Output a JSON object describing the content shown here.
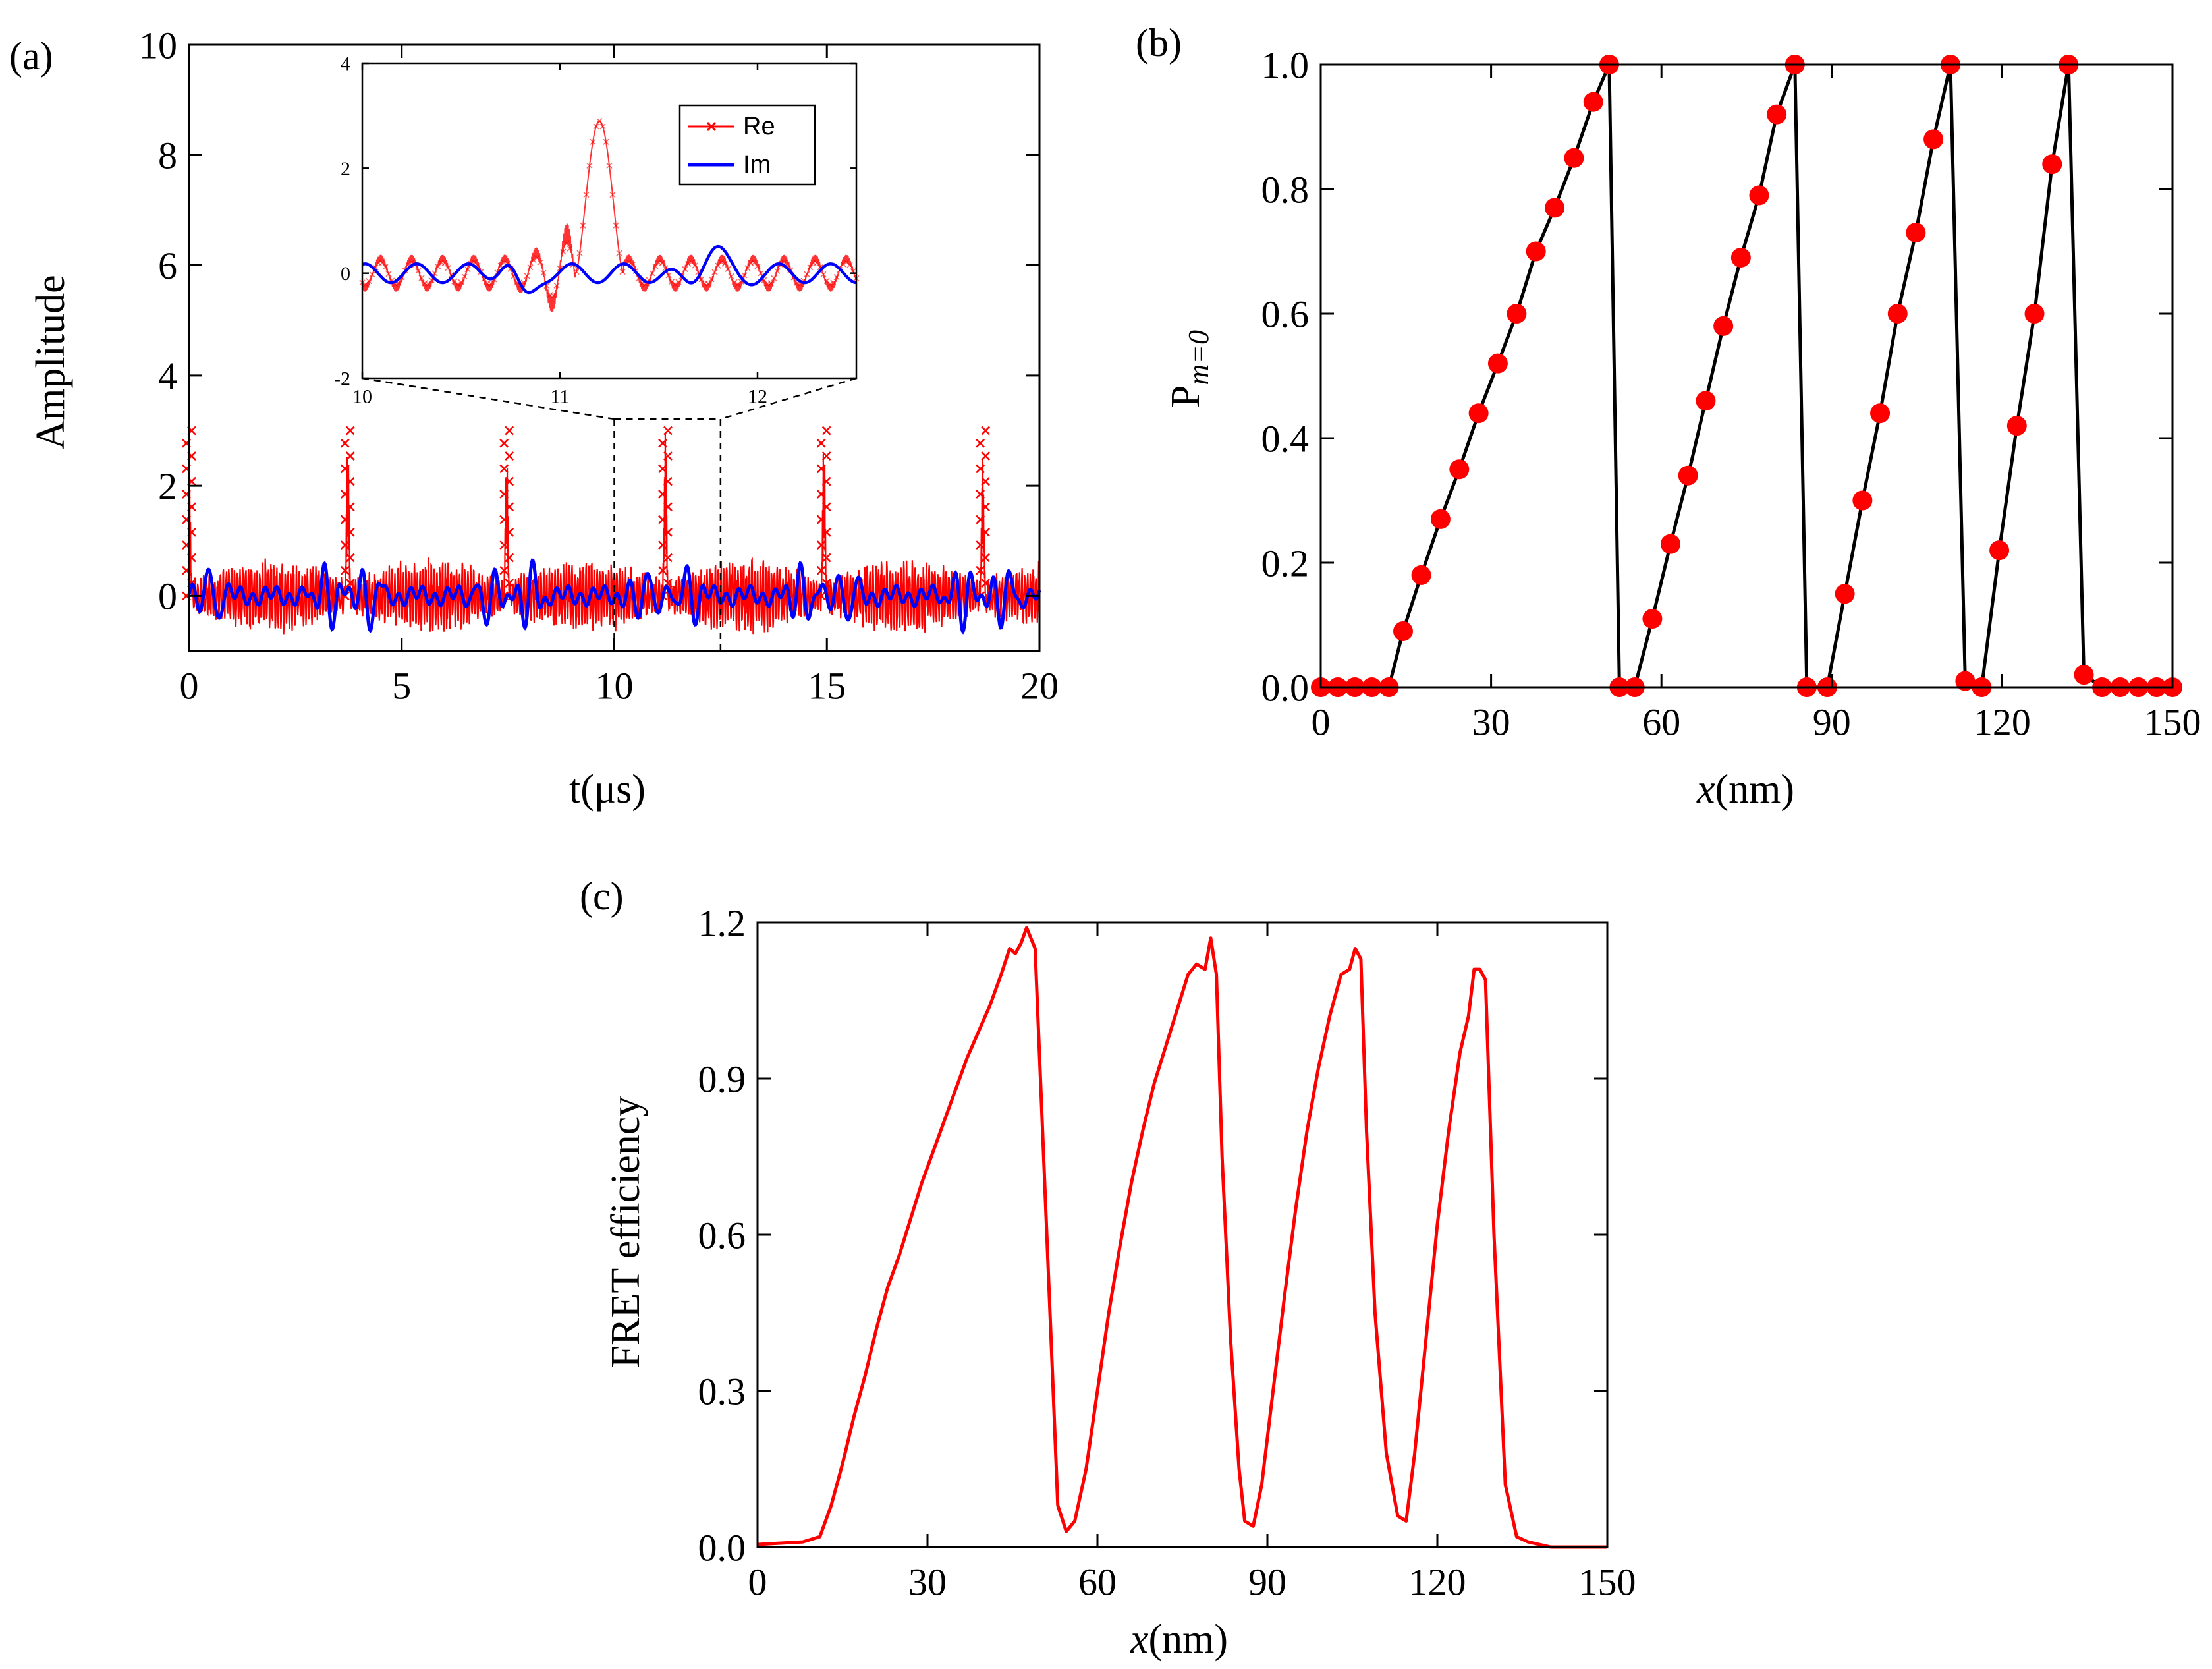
{
  "chart_data": [
    {
      "panel": "(a)",
      "type": "line",
      "xlabel": "t(μs)",
      "ylabel": "Amplitude",
      "xlim": [
        0,
        20
      ],
      "ylim": [
        -1.0,
        10
      ],
      "xticks": [
        0,
        5,
        10,
        15,
        20
      ],
      "yticks": [
        0,
        2,
        4,
        6,
        8,
        10
      ],
      "series": [
        {
          "name": "Re",
          "color": "#ff0000",
          "marker": "x",
          "peaks_at": [
            0.0,
            3.73,
            7.47,
            11.2,
            14.93,
            18.67
          ],
          "peak_value": 3.0,
          "baseline_range": [
            -0.8,
            0.8
          ]
        },
        {
          "name": "Im",
          "color": "#0000ff",
          "range": [
            -0.8,
            0.8
          ]
        }
      ],
      "zoom_region": {
        "x": [
          10.0,
          12.5
        ]
      },
      "inset": {
        "xlim": [
          10,
          12.5
        ],
        "ylim": [
          -2,
          4
        ],
        "xticks": [
          10,
          11,
          12
        ],
        "yticks": [
          -2,
          0,
          2,
          4
        ],
        "legend": [
          "Re",
          "Im"
        ],
        "legend_position": "top-right",
        "re_peak": {
          "x": 11.2,
          "y": 2.9
        }
      }
    },
    {
      "panel": "(b)",
      "type": "line",
      "xlabel_italic": "x",
      "xlabel_rest": "(nm)",
      "ylabel_main": "P",
      "ylabel_sub": "m=0",
      "xlim": [
        0,
        150
      ],
      "ylim": [
        0,
        1.0
      ],
      "xticks": [
        0,
        30,
        60,
        90,
        120,
        150
      ],
      "yticks": [
        "0.0",
        "0.2",
        "0.4",
        "0.6",
        "0.8",
        "1.0"
      ],
      "line_color": "#000000",
      "marker_color": "#ff0000",
      "x": [
        0,
        3,
        6,
        9,
        12,
        14.5,
        17.7,
        21.1,
        24.4,
        27.8,
        31.2,
        34.5,
        37.9,
        41.2,
        44.6,
        48,
        50.8,
        52.6,
        55.3,
        58.4,
        61.6,
        64.7,
        67.8,
        70.9,
        74,
        77.2,
        80.3,
        83.5,
        85.6,
        89.2,
        92.3,
        95.4,
        98.5,
        101.6,
        104.8,
        107.9,
        110.9,
        113.5,
        116.4,
        119.5,
        122.6,
        125.7,
        128.8,
        131.7,
        134.4,
        137.6,
        140.8,
        144,
        147.2,
        150
      ],
      "values": [
        0,
        0,
        0,
        0,
        0,
        0.09,
        0.18,
        0.27,
        0.35,
        0.44,
        0.52,
        0.6,
        0.7,
        0.77,
        0.85,
        0.94,
        1.0,
        0,
        0,
        0.11,
        0.23,
        0.34,
        0.46,
        0.58,
        0.69,
        0.79,
        0.92,
        1.0,
        0,
        0,
        0.15,
        0.3,
        0.44,
        0.6,
        0.73,
        0.88,
        1.0,
        0.01,
        0,
        0.22,
        0.42,
        0.6,
        0.84,
        1.0,
        0.02,
        0.0,
        0,
        0,
        0,
        0
      ]
    },
    {
      "panel": "(c)",
      "type": "line",
      "xlabel_italic": "x",
      "xlabel_rest": "(nm)",
      "ylabel": "FRET efficiency",
      "xlim": [
        0,
        150
      ],
      "ylim": [
        0,
        1.2
      ],
      "xticks": [
        0,
        30,
        60,
        90,
        120,
        150
      ],
      "yticks": [
        "0.0",
        "0.3",
        "0.6",
        "0.9",
        "1.2"
      ],
      "color": "#ff0000",
      "x": [
        0,
        8,
        11,
        13,
        15,
        17,
        19,
        21,
        23,
        25,
        27,
        29,
        31,
        33,
        35,
        37,
        39,
        41,
        43,
        44.5,
        45.5,
        46.5,
        47.5,
        49,
        50.5,
        52,
        53,
        54.5,
        56,
        58,
        60,
        62,
        64,
        66,
        68,
        70,
        72,
        74,
        76,
        77.5,
        79,
        80,
        81,
        82,
        83.5,
        85,
        86,
        87.5,
        89,
        91,
        93,
        95,
        97,
        99,
        101,
        103,
        104.5,
        105.5,
        106.5,
        107.5,
        109,
        111,
        113,
        114.5,
        116,
        118,
        120,
        122,
        124,
        125.5,
        126.5,
        127.5,
        128.5,
        130,
        132,
        134,
        136,
        140,
        145,
        150
      ],
      "values": [
        0.005,
        0.01,
        0.02,
        0.08,
        0.16,
        0.25,
        0.33,
        0.42,
        0.5,
        0.56,
        0.63,
        0.7,
        0.76,
        0.82,
        0.88,
        0.94,
        0.99,
        1.04,
        1.1,
        1.15,
        1.14,
        1.16,
        1.19,
        1.15,
        0.75,
        0.35,
        0.08,
        0.03,
        0.05,
        0.15,
        0.3,
        0.45,
        0.58,
        0.7,
        0.8,
        0.89,
        0.96,
        1.03,
        1.1,
        1.12,
        1.11,
        1.17,
        1.1,
        0.75,
        0.4,
        0.15,
        0.05,
        0.04,
        0.12,
        0.3,
        0.48,
        0.65,
        0.8,
        0.92,
        1.02,
        1.1,
        1.11,
        1.15,
        1.13,
        0.8,
        0.45,
        0.18,
        0.06,
        0.05,
        0.18,
        0.4,
        0.62,
        0.8,
        0.95,
        1.02,
        1.11,
        1.11,
        1.09,
        0.6,
        0.12,
        0.02,
        0.01,
        0.0,
        0.0,
        0.0
      ]
    }
  ]
}
